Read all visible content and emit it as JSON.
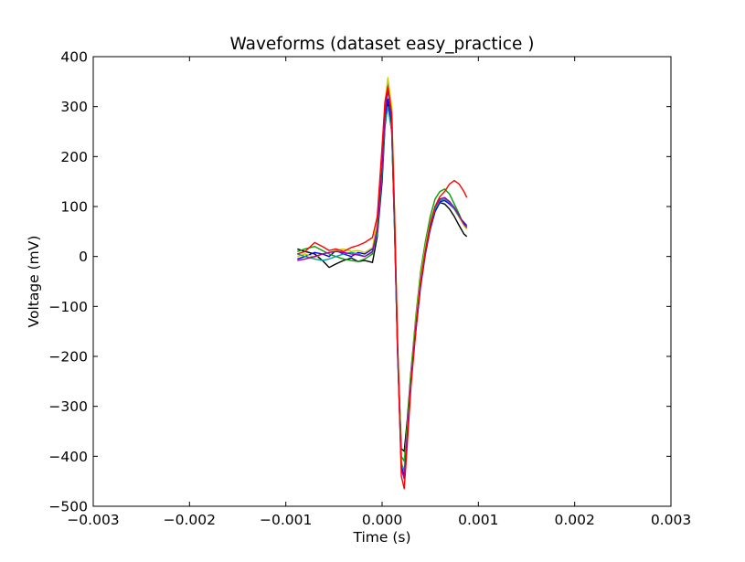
{
  "chart_data": {
    "type": "line",
    "title": "Waveforms (dataset easy_practice )",
    "xlabel": "Time (s)",
    "ylabel": "Voltage (mV)",
    "xlim": [
      -0.003,
      0.003
    ],
    "ylim": [
      -500,
      400
    ],
    "xticks": [
      -0.003,
      -0.002,
      -0.001,
      0.0,
      0.001,
      0.002,
      0.003
    ],
    "xtick_labels": [
      "−0.003",
      "−0.002",
      "−0.001",
      "0.000",
      "0.001",
      "0.002",
      "0.003"
    ],
    "yticks": [
      400,
      300,
      200,
      100,
      0,
      -100,
      -200,
      -300,
      -400,
      -500
    ],
    "ytick_labels": [
      "400",
      "300",
      "200",
      "100",
      "0",
      "−100",
      "−200",
      "−300",
      "−400",
      "−500"
    ],
    "grid": false,
    "series": [
      {
        "color": "#000000",
        "x": [
          -0.00088,
          -0.0008,
          -0.0007,
          -0.00062,
          -0.00055,
          -0.00048,
          -0.0004,
          -0.00032,
          -0.00025,
          -0.00018,
          -0.0001,
          -5e-05,
          0.0,
          3e-05,
          6e-05,
          0.0001,
          0.00013,
          0.00016,
          0.0002,
          0.00023,
          0.00026,
          0.0003,
          0.00035,
          0.0004,
          0.00045,
          0.0005,
          0.00055,
          0.0006,
          0.00065,
          0.0007,
          0.00075,
          0.0008,
          0.00085,
          0.00088
        ],
        "y": [
          15,
          10,
          5,
          -8,
          -22,
          -15,
          -8,
          -3,
          -10,
          -8,
          -12,
          40,
          150,
          260,
          305,
          250,
          50,
          -180,
          -385,
          -390,
          -330,
          -230,
          -130,
          -50,
          10,
          55,
          90,
          108,
          105,
          95,
          80,
          62,
          45,
          40
        ]
      },
      {
        "color": "#0000ff",
        "x": [
          -0.00088,
          -0.0008,
          -0.0007,
          -0.00062,
          -0.00055,
          -0.00048,
          -0.0004,
          -0.00032,
          -0.00025,
          -0.00018,
          -0.0001,
          -5e-05,
          0.0,
          3e-05,
          6e-05,
          0.0001,
          0.00013,
          0.00016,
          0.0002,
          0.00023,
          0.00026,
          0.0003,
          0.00035,
          0.0004,
          0.00045,
          0.0005,
          0.00055,
          0.0006,
          0.00065,
          0.0007,
          0.00075,
          0.0008,
          0.00085,
          0.00088
        ],
        "y": [
          -5,
          0,
          8,
          5,
          0,
          12,
          5,
          0,
          8,
          5,
          15,
          50,
          170,
          270,
          315,
          260,
          60,
          -190,
          -420,
          -440,
          -360,
          -250,
          -150,
          -60,
          5,
          55,
          90,
          110,
          112,
          105,
          95,
          80,
          68,
          62
        ]
      },
      {
        "color": "#00a000",
        "x": [
          -0.00088,
          -0.0008,
          -0.0007,
          -0.00062,
          -0.00055,
          -0.00048,
          -0.0004,
          -0.00032,
          -0.00025,
          -0.00018,
          -0.0001,
          -5e-05,
          0.0,
          3e-05,
          6e-05,
          0.0001,
          0.00013,
          0.00016,
          0.0002,
          0.00023,
          0.00026,
          0.0003,
          0.00035,
          0.0004,
          0.00045,
          0.0005,
          0.00055,
          0.0006,
          0.00065,
          0.0007,
          0.00075,
          0.0008,
          0.00085,
          0.00088
        ],
        "y": [
          10,
          15,
          20,
          12,
          5,
          0,
          -5,
          -8,
          -10,
          -5,
          5,
          60,
          200,
          300,
          345,
          290,
          80,
          -170,
          -400,
          -410,
          -340,
          -230,
          -120,
          -30,
          30,
          80,
          115,
          130,
          135,
          125,
          105,
          85,
          62,
          55
        ]
      },
      {
        "color": "#cccc00",
        "x": [
          -0.00088,
          -0.0008,
          -0.0007,
          -0.00062,
          -0.00055,
          -0.00048,
          -0.0004,
          -0.00032,
          -0.00025,
          -0.00018,
          -0.0001,
          -5e-05,
          0.0,
          3e-05,
          6e-05,
          0.0001,
          0.00013,
          0.00016,
          0.0002,
          0.00023,
          0.00026,
          0.0003,
          0.00035,
          0.0004,
          0.00045,
          0.0005,
          0.00055,
          0.0006,
          0.00065,
          0.0007,
          0.00075,
          0.0008,
          0.00085,
          0.00088
        ],
        "y": [
          0,
          5,
          -2,
          5,
          8,
          12,
          15,
          10,
          12,
          8,
          18,
          70,
          210,
          310,
          358,
          300,
          90,
          -160,
          -410,
          -430,
          -350,
          -240,
          -130,
          -40,
          20,
          70,
          100,
          115,
          118,
          110,
          95,
          78,
          62,
          55
        ]
      },
      {
        "color": "#00a0a0",
        "x": [
          -0.00088,
          -0.0008,
          -0.0007,
          -0.00062,
          -0.00055,
          -0.00048,
          -0.0004,
          -0.00032,
          -0.00025,
          -0.00018,
          -0.0001,
          -5e-05,
          0.0,
          3e-05,
          6e-05,
          0.0001,
          0.00013,
          0.00016,
          0.0002,
          0.00023,
          0.00026,
          0.0003,
          0.00035,
          0.0004,
          0.00045,
          0.0005,
          0.00055,
          0.0006,
          0.00065,
          0.0007,
          0.00075,
          0.0008,
          0.00085,
          0.00088
        ],
        "y": [
          5,
          0,
          -5,
          -8,
          -5,
          0,
          5,
          8,
          5,
          0,
          8,
          45,
          165,
          265,
          300,
          250,
          55,
          -185,
          -415,
          -430,
          -355,
          -245,
          -140,
          -50,
          10,
          60,
          95,
          112,
          115,
          108,
          95,
          80,
          65,
          60
        ]
      },
      {
        "color": "#a000a0",
        "x": [
          -0.00088,
          -0.0008,
          -0.0007,
          -0.00062,
          -0.00055,
          -0.00048,
          -0.0004,
          -0.00032,
          -0.00025,
          -0.00018,
          -0.0001,
          -5e-05,
          0.0,
          3e-05,
          6e-05,
          0.0001,
          0.00013,
          0.00016,
          0.0002,
          0.00023,
          0.00026,
          0.0003,
          0.00035,
          0.0004,
          0.00045,
          0.0005,
          0.00055,
          0.0006,
          0.00065,
          0.0007,
          0.00075,
          0.0008,
          0.00085,
          0.00088
        ],
        "y": [
          -8,
          -5,
          0,
          5,
          8,
          10,
          8,
          5,
          3,
          0,
          10,
          55,
          180,
          285,
          335,
          275,
          70,
          -175,
          -425,
          -445,
          -360,
          -250,
          -140,
          -50,
          12,
          65,
          100,
          115,
          118,
          110,
          98,
          82,
          65,
          58
        ]
      },
      {
        "color": "#ff0000",
        "x": [
          -0.00088,
          -0.0008,
          -0.0007,
          -0.00062,
          -0.00055,
          -0.00048,
          -0.0004,
          -0.00032,
          -0.00025,
          -0.00018,
          -0.0001,
          -5e-05,
          0.0,
          3e-05,
          6e-05,
          0.0001,
          0.00013,
          0.00016,
          0.0002,
          0.00023,
          0.00026,
          0.0003,
          0.00035,
          0.0004,
          0.00045,
          0.0005,
          0.00055,
          0.0006,
          0.00065,
          0.0007,
          0.00075,
          0.0008,
          0.00085,
          0.00088
        ],
        "y": [
          5,
          10,
          28,
          20,
          12,
          15,
          10,
          18,
          22,
          28,
          38,
          80,
          220,
          310,
          340,
          285,
          80,
          -170,
          -440,
          -465,
          -380,
          -260,
          -150,
          -55,
          10,
          60,
          100,
          120,
          130,
          145,
          152,
          145,
          130,
          118
        ]
      }
    ]
  }
}
